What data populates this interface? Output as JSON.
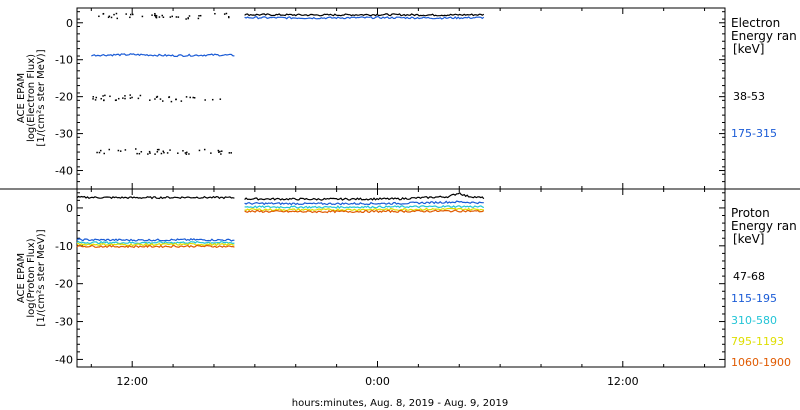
{
  "chart_data": [
    {
      "type": "scatter",
      "panel": "electron",
      "ylabel_lines": [
        "ACE EPAM",
        "log(Electron Flux)",
        "[1/(cm²s ster MeV)]"
      ],
      "ylim": [
        -45,
        4
      ],
      "yticks": [
        0,
        -10,
        -20,
        -30,
        -40
      ],
      "ytick_labels": [
        "0",
        "-10",
        "-20",
        "-30",
        "-40"
      ],
      "legend_title_lines": [
        "Electron",
        "Energy ranges",
        "[keV]"
      ],
      "legend_title_visible": [
        "Electron",
        "Energy ran",
        "[keV]"
      ],
      "colors": {
        "series_0": "#000000",
        "series_1": "#1a5bd6"
      },
      "series": [
        {
          "name": "38-53",
          "color": "#000000",
          "segments": [
            {
              "x": [
                10.0,
                11.5,
                13.0,
                14.5,
                16.0,
                17.0
              ],
              "y": [
                2.1,
                2.0,
                2.2,
                1.8,
                2.0,
                2.1
              ],
              "sparse": true
            },
            {
              "x": [
                10.0,
                12.0,
                14.0,
                16.0,
                17.0
              ],
              "y": [
                -20.2,
                -20.0,
                -20.5,
                -20.1,
                -20.3
              ],
              "sparse": true
            },
            {
              "x": [
                10.0,
                12.0,
                14.0,
                16.0,
                17.0
              ],
              "y": [
                -34.8,
                -34.5,
                -35.0,
                -34.6,
                -35.2
              ],
              "sparse": true
            },
            {
              "x": [
                17.5,
                21.0,
                24.0,
                27.0,
                29.2
              ],
              "y": [
                2.2,
                2.1,
                2.2,
                2.1,
                2.2
              ],
              "sparse": false
            }
          ]
        },
        {
          "name": "175-315",
          "color": "#1a5bd6",
          "segments": [
            {
              "x": [
                10.0,
                12.0,
                14.0,
                16.0,
                17.0
              ],
              "y": [
                -8.8,
                -8.6,
                -8.9,
                -8.7,
                -8.8
              ],
              "sparse": false
            },
            {
              "x": [
                17.5,
                21.0,
                24.0,
                27.0,
                29.2
              ],
              "y": [
                1.4,
                1.3,
                1.4,
                1.3,
                1.4
              ],
              "sparse": false
            }
          ]
        }
      ]
    },
    {
      "type": "line",
      "panel": "proton",
      "ylabel_lines": [
        "ACE EPAM",
        "log(Proton Flux)",
        "[1/(cm²s ster MeV)]"
      ],
      "ylim": [
        -42,
        5
      ],
      "yticks": [
        0,
        -10,
        -20,
        -30,
        -40
      ],
      "ytick_labels": [
        "0",
        "-10",
        "-20",
        "-30",
        "-40"
      ],
      "legend_title_lines": [
        "Proton",
        "Energy ranges",
        "[keV]"
      ],
      "legend_title_visible": [
        "Proton",
        "Energy ran",
        "[keV]"
      ],
      "series": [
        {
          "name": "47-68",
          "color": "#000000",
          "segments": [
            {
              "x": [
                9.3,
                12.0,
                15.0,
                17.0
              ],
              "y": [
                2.8,
                2.7,
                2.8,
                2.7
              ]
            },
            {
              "x": [
                17.5,
                21.0,
                25.0,
                27.5,
                28.0,
                28.3,
                29.2
              ],
              "y": [
                2.4,
                2.3,
                2.4,
                3.0,
                4.0,
                3.2,
                2.6
              ]
            }
          ]
        },
        {
          "name": "115-195",
          "color": "#1a5bd6",
          "segments": [
            {
              "x": [
                9.3,
                12.0,
                15.0,
                17.0
              ],
              "y": [
                -8.4,
                -8.5,
                -8.4,
                -8.5
              ]
            },
            {
              "x": [
                17.5,
                21.0,
                25.0,
                28.0,
                29.2
              ],
              "y": [
                1.2,
                1.1,
                1.2,
                1.6,
                1.3
              ]
            }
          ]
        },
        {
          "name": "310-580",
          "color": "#22c4d6",
          "segments": [
            {
              "x": [
                9.3,
                12.0,
                15.0,
                17.0
              ],
              "y": [
                -9.1,
                -9.2,
                -9.1,
                -9.2
              ]
            },
            {
              "x": [
                17.5,
                21.0,
                25.0,
                28.0,
                29.2
              ],
              "y": [
                0.3,
                0.2,
                0.3,
                0.4,
                0.3
              ]
            }
          ]
        },
        {
          "name": "795-1193",
          "color": "#dede00",
          "segments": [
            {
              "x": [
                9.3,
                12.0,
                15.0,
                17.0
              ],
              "y": [
                -9.6,
                -9.7,
                -9.6,
                -9.7
              ]
            },
            {
              "x": [
                17.5,
                21.0,
                25.0,
                28.0,
                29.2
              ],
              "y": [
                -0.4,
                -0.5,
                -0.4,
                -0.3,
                -0.4
              ]
            }
          ]
        },
        {
          "name": "1060-1900",
          "color": "#e05a00",
          "segments": [
            {
              "x": [
                9.3,
                12.0,
                15.0,
                17.0
              ],
              "y": [
                -10.1,
                -10.2,
                -10.1,
                -10.2
              ]
            },
            {
              "x": [
                17.5,
                21.0,
                25.0,
                28.0,
                29.2
              ],
              "y": [
                -0.9,
                -1.0,
                -0.9,
                -0.8,
                -0.9
              ]
            }
          ]
        }
      ]
    }
  ],
  "x_axis": {
    "unit": "hours from Aug. 8, 2019 00:00",
    "xlim": [
      9.3,
      41.0
    ],
    "ticks": [
      12,
      24,
      36
    ],
    "tick_labels": [
      "12:00",
      "0:00",
      "12:00"
    ],
    "label": "hours:minutes, Aug.  8, 2019 - Aug.  9, 2019"
  }
}
